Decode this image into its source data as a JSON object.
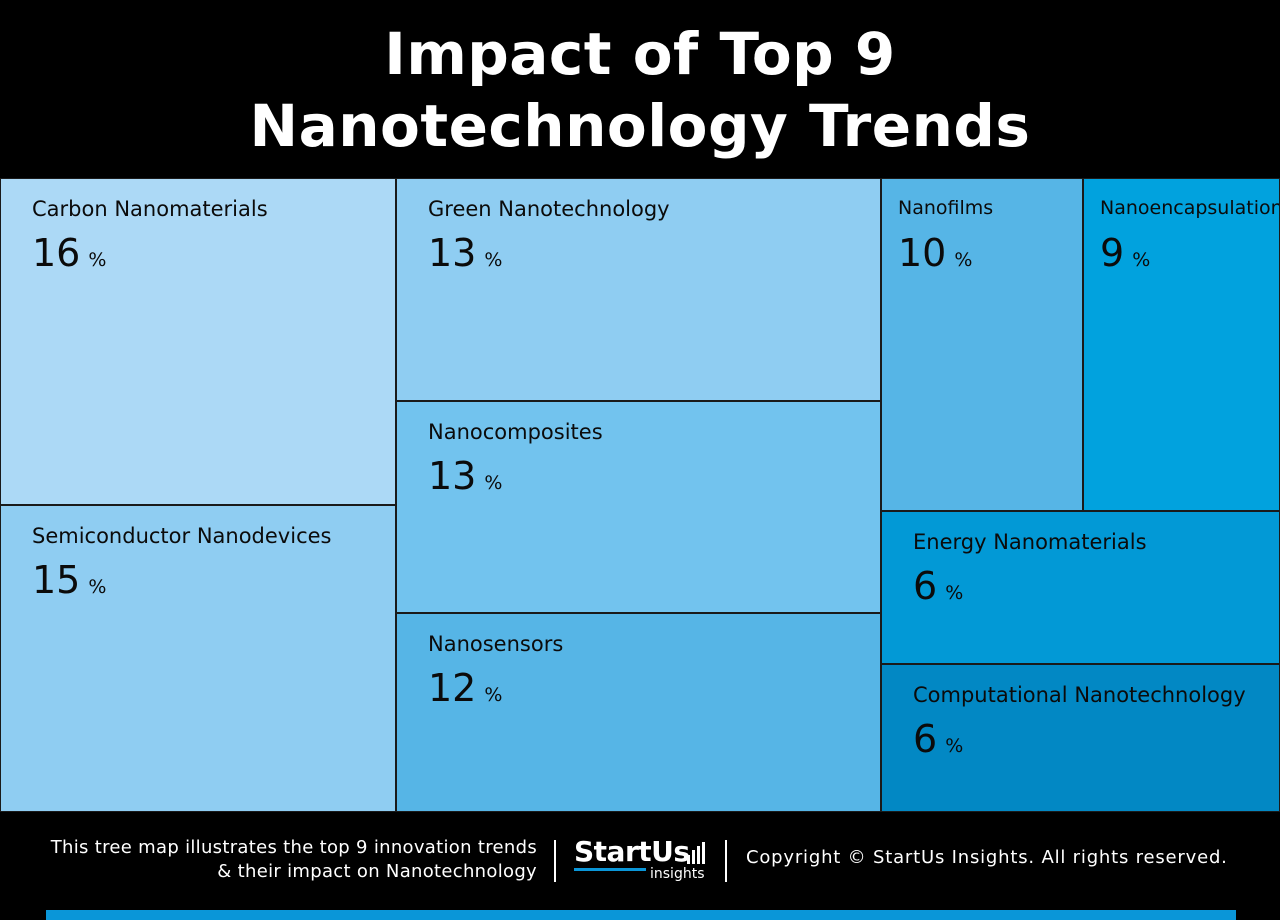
{
  "title": {
    "line1": "Impact of Top 9",
    "line2": "Nanotechnology Trends"
  },
  "chart_data": {
    "type": "treemap",
    "title": "Impact of Top 9 Nanotechnology Trends",
    "unit": "%",
    "items": [
      {
        "label": "Carbon Nanomaterials",
        "value": 16,
        "color": "#acd9f6"
      },
      {
        "label": "Semiconductor Nanodevices",
        "value": 15,
        "color": "#8fcdf2"
      },
      {
        "label": "Green Nanotechnology",
        "value": 13,
        "color": "#8fcdf2"
      },
      {
        "label": "Nanocomposites",
        "value": 13,
        "color": "#72c3ee"
      },
      {
        "label": "Nanosensors",
        "value": 12,
        "color": "#56b5e6"
      },
      {
        "label": "Nanofilms",
        "value": 10,
        "color": "#56b5e6"
      },
      {
        "label": "Nanoencapsulation",
        "value": 9,
        "color": "#01a2de"
      },
      {
        "label": "Energy Nanomaterials",
        "value": 6,
        "color": "#0299d6"
      },
      {
        "label": "Computational Nanotechnology",
        "value": 6,
        "color": "#0288c4"
      }
    ]
  },
  "footer": {
    "description_line1": "This tree map illustrates the top 9 innovation trends",
    "description_line2": "& their impact on Nanotechnology",
    "logo_word": "StartUs",
    "logo_sub": "insights",
    "copyright": "Copyright © StartUs Insights. All rights reserved.",
    "accent_color": "#0a96d8"
  }
}
